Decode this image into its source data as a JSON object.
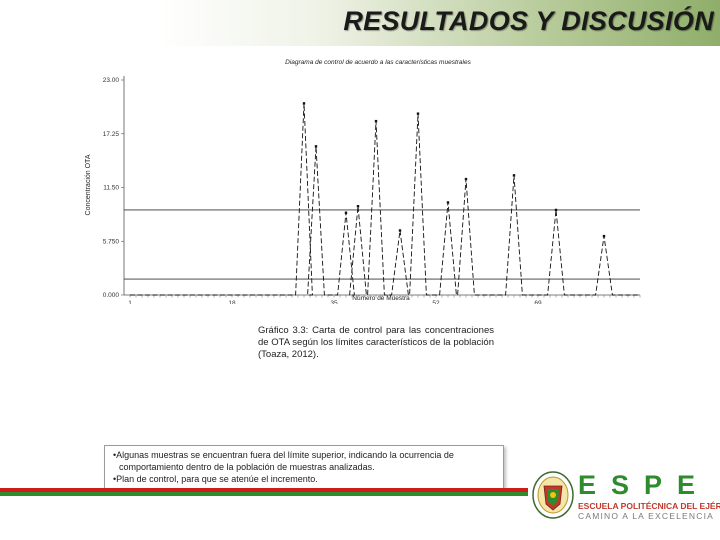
{
  "slide": {
    "title": "RESULTADOS Y DISCUSIÓN"
  },
  "chart_data": {
    "type": "line",
    "title": "Diagrama de control de acuerdo a las características muestrales",
    "xlabel": "Número de Muestra",
    "ylabel": "Concentración OTA",
    "ytick_labels": [
      "0.000",
      "5.750",
      "11.50",
      "17.25",
      "23.00"
    ],
    "yticks": [
      0,
      5.75,
      11.5,
      17.25,
      23.0
    ],
    "ylim": [
      0,
      23.0
    ],
    "xtick_labels": [
      "1",
      "18",
      "35",
      "52",
      "69"
    ],
    "xticks": [
      1,
      18,
      35,
      52,
      69
    ],
    "xlim": [
      0,
      86
    ],
    "upper_limit": 9.1,
    "lower_limit": 1.7,
    "peaks": [
      {
        "x": 30,
        "y": 20.5
      },
      {
        "x": 32,
        "y": 15.9
      },
      {
        "x": 37,
        "y": 8.8
      },
      {
        "x": 39,
        "y": 9.5
      },
      {
        "x": 42,
        "y": 18.6
      },
      {
        "x": 46,
        "y": 6.9
      },
      {
        "x": 49,
        "y": 19.4
      },
      {
        "x": 54,
        "y": 9.9
      },
      {
        "x": 57,
        "y": 12.4
      },
      {
        "x": 65,
        "y": 12.8
      },
      {
        "x": 72,
        "y": 9.1
      },
      {
        "x": 80,
        "y": 6.3
      }
    ],
    "grid": false
  },
  "caption": {
    "text": "Gráfico 3.3: Carta de control para las concentraciones de OTA según los límites característicos de la población (Toaza, 2012)."
  },
  "notes": {
    "items": [
      "•Algunas muestras se encuentran fuera del límite superior, indicando la ocurrencia de comportamiento dentro de la población de muestras analizadas.",
      "•Plan de control, para que se atenúe el incremento."
    ]
  },
  "logo": {
    "word": "ESPE",
    "subtitle": "ESCUELA POLITÉCNICA DEL EJÉRCITO",
    "motto": "CAMINO A LA EXCELENCIA"
  },
  "colors": {
    "brand_green": "#2e8b2e",
    "brand_red": "#d01b1b"
  }
}
